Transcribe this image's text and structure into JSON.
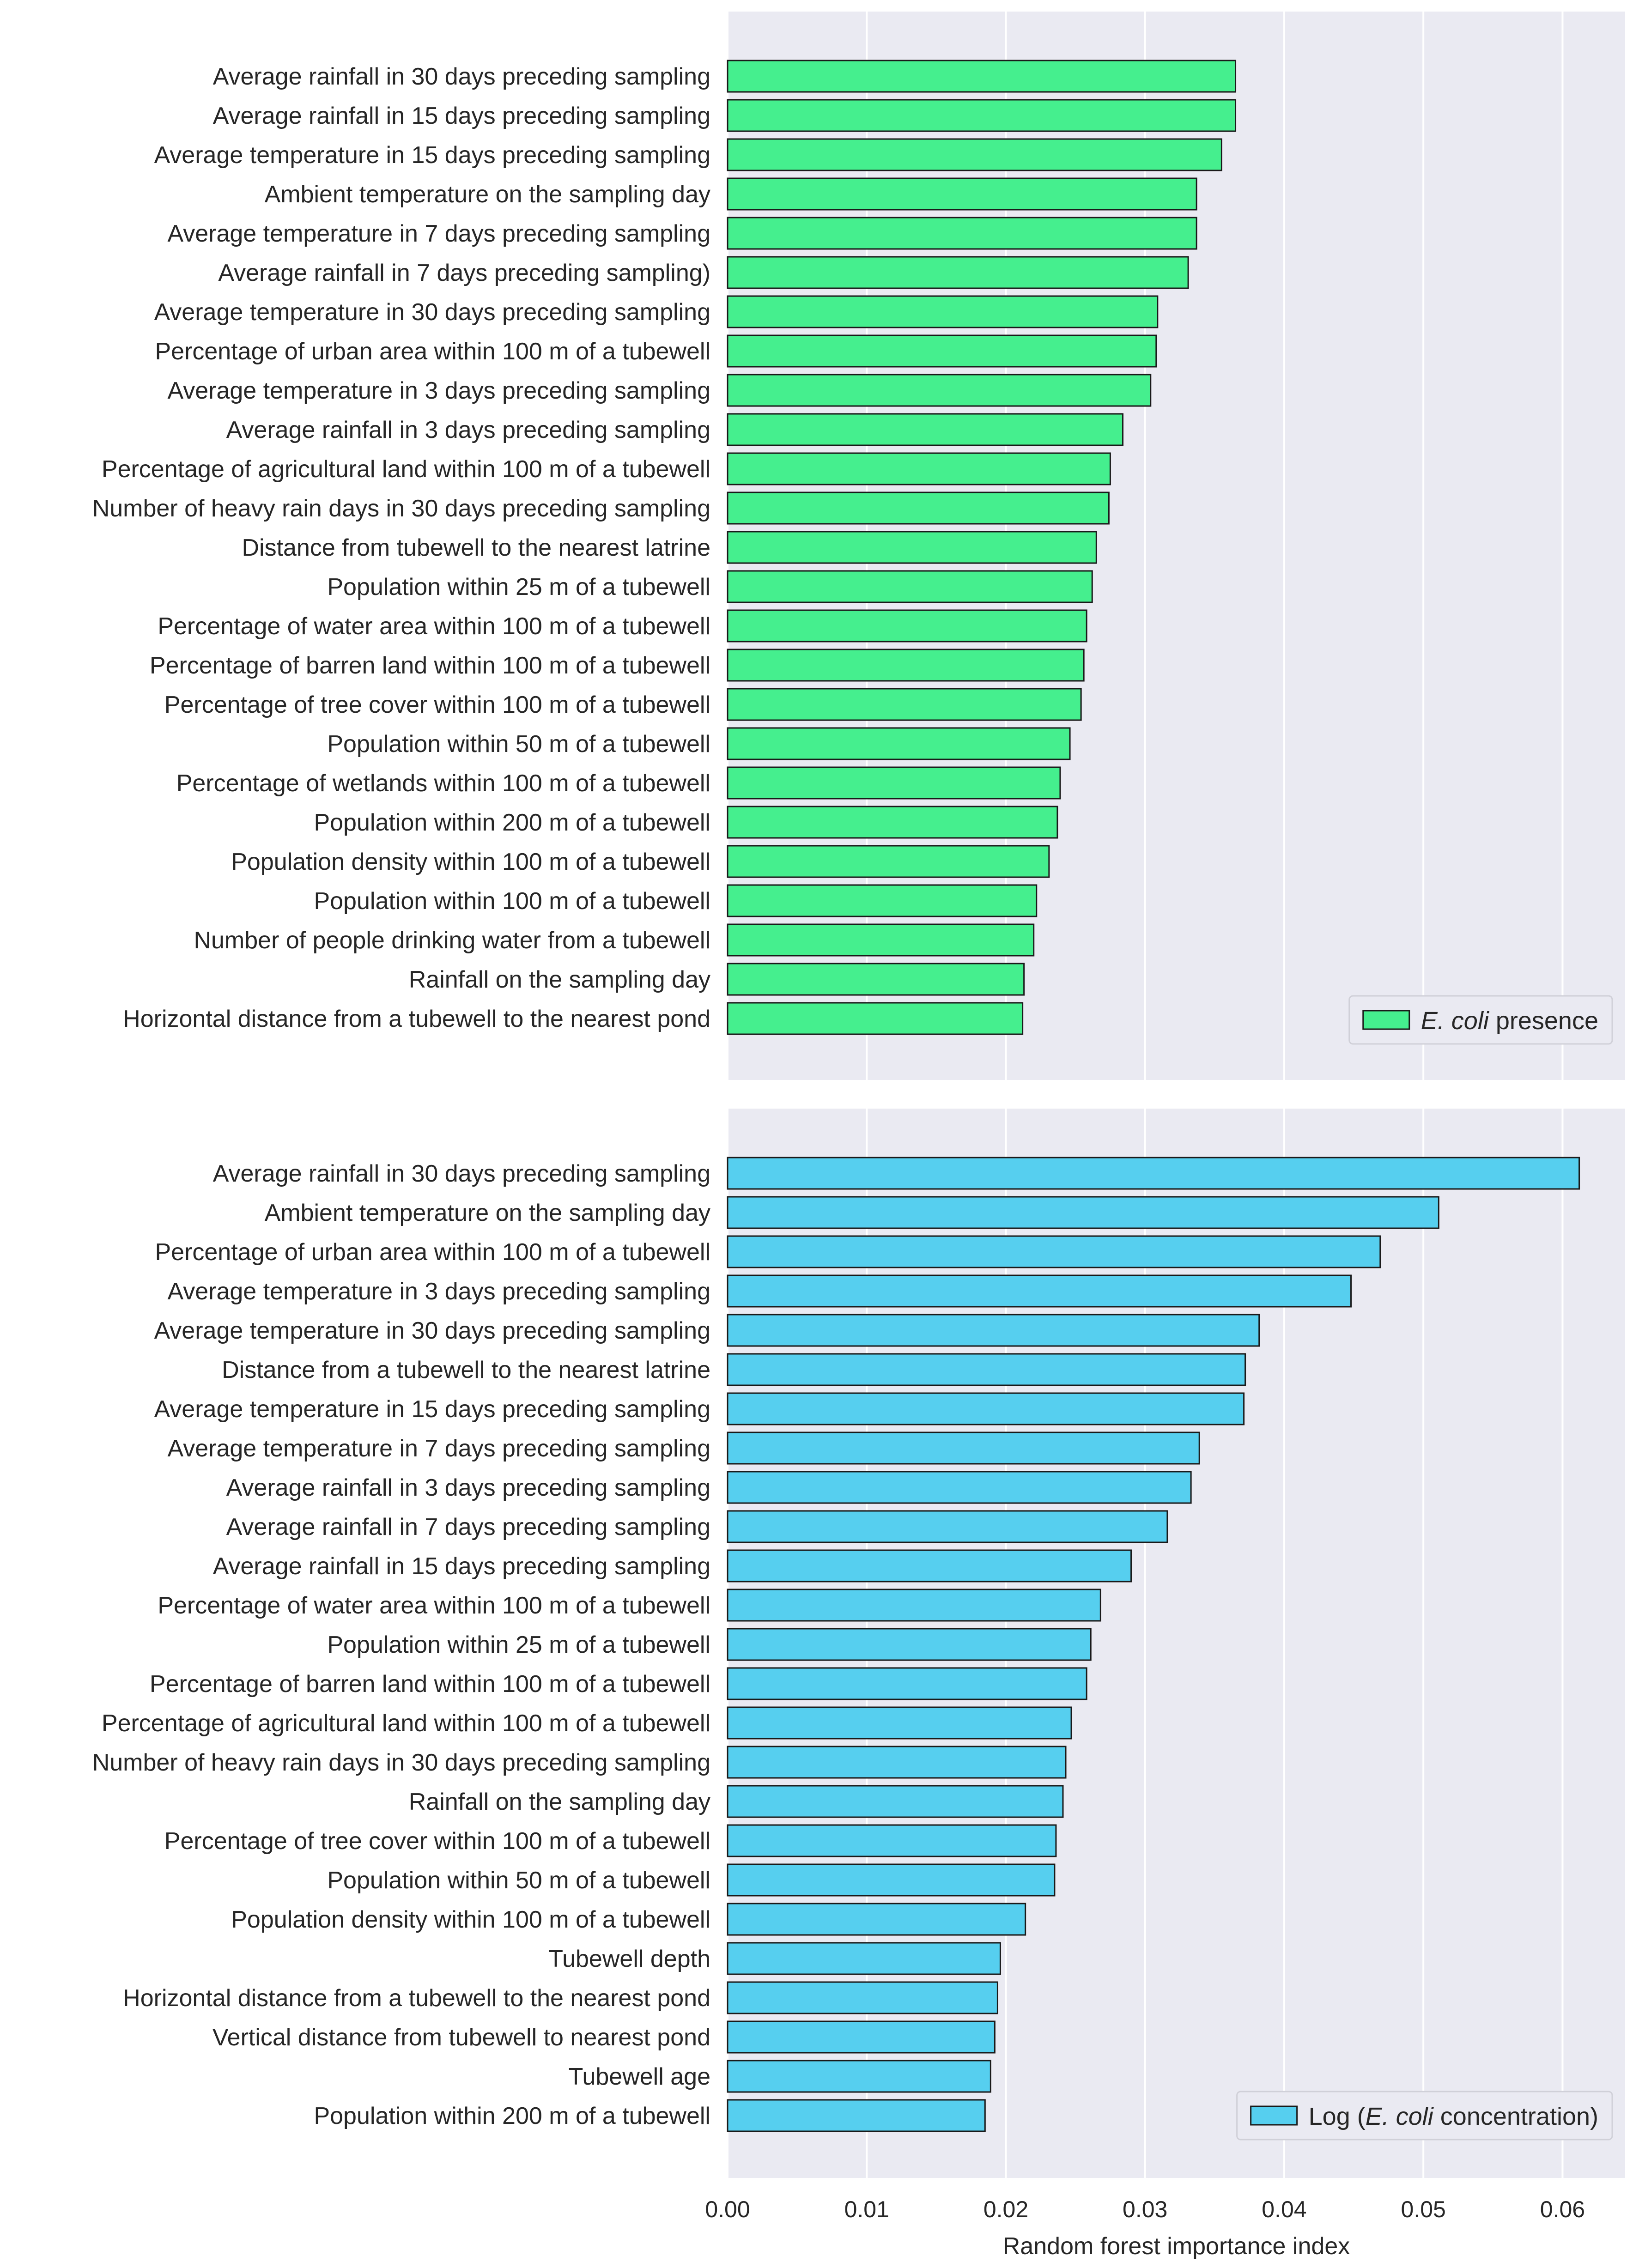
{
  "xaxis": {
    "label": "Random forest importance index",
    "xlim": [
      0,
      0.0645
    ],
    "ticks": [
      0.0,
      0.01,
      0.02,
      0.03,
      0.04,
      0.05,
      0.06
    ],
    "tick_labels": [
      "0.00",
      "0.01",
      "0.02",
      "0.03",
      "0.04",
      "0.05",
      "0.06"
    ]
  },
  "chart_data": [
    {
      "type": "bar",
      "orientation": "horizontal",
      "legend": {
        "italic": "E. coli",
        "suffix": " presence",
        "position": "bottom-right"
      },
      "color": "#45ef8e",
      "edge_color": "#1a1a1a",
      "grid": true,
      "categories": [
        "Average rainfall in 30 days preceding sampling",
        "Average rainfall in 15 days preceding sampling",
        "Average temperature in 15 days preceding sampling",
        "Ambient temperature on the sampling day",
        "Average temperature in 7 days preceding sampling",
        "Average rainfall in 7 days preceding sampling)",
        "Average temperature in 30 days preceding sampling",
        "Percentage of urban area within 100 m of a tubewell",
        "Average temperature in 3 days preceding sampling",
        "Average rainfall in 3 days preceding sampling",
        "Percentage of agricultural land within 100 m of a tubewell",
        "Number of heavy rain days in 30 days preceding sampling",
        "Distance from tubewell to the nearest latrine",
        "Population within 25 m of a tubewell",
        "Percentage of water area within 100 m of a tubewell",
        "Percentage of barren land within 100 m of a tubewell",
        "Percentage of tree cover within 100 m of a tubewell",
        "Population within 50 m of a tubewell",
        "Percentage of wetlands within 100 m of a tubewell",
        "Population within 200 m of a tubewell",
        "Population density within 100 m of a tubewell",
        "Population within 100 m of a tubewell",
        "Number of people drinking water from a tubewell",
        "Rainfall on the sampling day",
        "Horizontal distance from a tubewell to the nearest pond"
      ],
      "values": [
        0.0365,
        0.0365,
        0.0355,
        0.0337,
        0.0337,
        0.0331,
        0.0309,
        0.0308,
        0.0304,
        0.0284,
        0.0275,
        0.0274,
        0.0265,
        0.0262,
        0.0258,
        0.0256,
        0.0254,
        0.0246,
        0.0239,
        0.0237,
        0.0231,
        0.0222,
        0.022,
        0.0213,
        0.0212
      ]
    },
    {
      "type": "bar",
      "orientation": "horizontal",
      "legend": {
        "prefix": "Log (",
        "italic": "E. coli",
        "suffix": " concentration)",
        "position": "bottom-right"
      },
      "color": "#56cfef",
      "edge_color": "#1a1a1a",
      "grid": true,
      "categories": [
        "Average rainfall in 30 days preceding sampling",
        "Ambient temperature on the sampling day",
        "Percentage of urban area within 100 m of a tubewell",
        "Average temperature in 3 days preceding sampling",
        "Average temperature in 30 days preceding sampling",
        "Distance from a tubewell to the nearest latrine",
        "Average temperature in 15 days preceding sampling",
        "Average temperature in 7 days preceding sampling",
        "Average rainfall in 3 days preceding sampling",
        "Average rainfall in 7 days preceding sampling",
        "Average rainfall in 15 days preceding sampling",
        "Percentage of water area within 100 m of a tubewell",
        "Population within 25 m of a tubewell",
        "Percentage of barren land within 100 m of a tubewell",
        "Percentage of agricultural land within 100 m of a tubewell",
        "Number of heavy rain days in 30 days preceding sampling",
        "Rainfall on the sampling day",
        "Percentage of tree cover within 100 m of a tubewell",
        "Population within 50 m of a tubewell",
        "Population density within 100 m of a tubewell",
        "Tubewell depth",
        "Horizontal distance from a tubewell to the nearest pond",
        "Vertical distance from tubewell to nearest pond",
        "Tubewell age",
        "Population within 200 m of a tubewell"
      ],
      "values": [
        0.0612,
        0.0511,
        0.0469,
        0.0448,
        0.0382,
        0.0372,
        0.0371,
        0.0339,
        0.0333,
        0.0316,
        0.029,
        0.0268,
        0.0261,
        0.0258,
        0.0247,
        0.0243,
        0.0241,
        0.0236,
        0.0235,
        0.0214,
        0.0196,
        0.0194,
        0.0192,
        0.0189,
        0.0185
      ]
    }
  ]
}
